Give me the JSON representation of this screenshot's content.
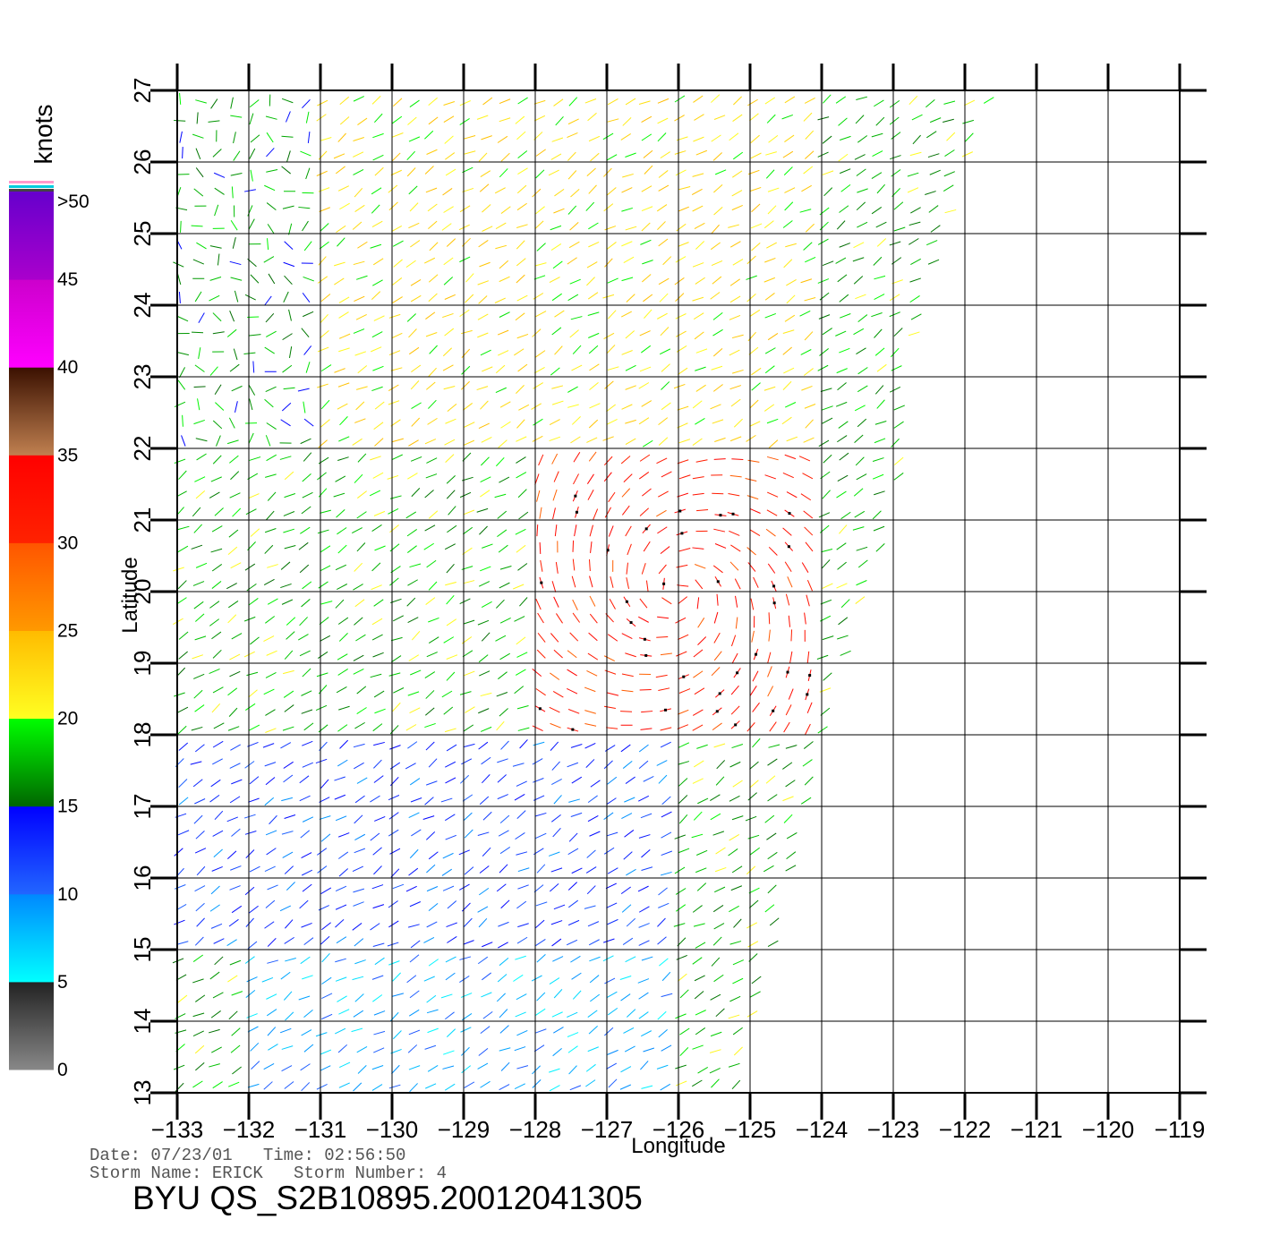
{
  "chart_data": {
    "type": "wind-vector map",
    "xlabel": "Longitude",
    "ylabel": "Latitude",
    "xlim": [
      -133,
      -119
    ],
    "ylim": [
      13,
      27
    ],
    "xticks": [
      "-133",
      "-132",
      "-131",
      "-130",
      "-129",
      "-128",
      "-127",
      "-126",
      "-125",
      "-124",
      "-123",
      "-122",
      "-121",
      "-120",
      "-119"
    ],
    "yticks": [
      "13",
      "14",
      "15",
      "16",
      "17",
      "18",
      "19",
      "20",
      "21",
      "22",
      "23",
      "24",
      "25",
      "26",
      "27"
    ],
    "grid": true,
    "swath_east_edge": [
      [
        13,
        -125.2
      ],
      [
        15,
        -124.7
      ],
      [
        17,
        -124.2
      ],
      [
        19,
        -123.7
      ],
      [
        21,
        -123.0
      ],
      [
        23,
        -122.8
      ],
      [
        25,
        -122.3
      ],
      [
        27,
        -121.6
      ]
    ],
    "colorbar": {
      "title": "knots",
      "labels": [
        ">50",
        "45",
        "40",
        "35",
        "30",
        "25",
        "20",
        "15",
        "10",
        "5",
        "0"
      ],
      "segments": [
        {
          "from": 0,
          "to": 5,
          "colors": [
            "#888888",
            "#222222"
          ]
        },
        {
          "from": 5,
          "to": 10,
          "colors": [
            "#00ffff",
            "#0088ff"
          ]
        },
        {
          "from": 10,
          "to": 15,
          "colors": [
            "#2266ff",
            "#0000ff"
          ]
        },
        {
          "from": 15,
          "to": 20,
          "colors": [
            "#006600",
            "#00ff00"
          ]
        },
        {
          "from": 20,
          "to": 25,
          "colors": [
            "#ffff22",
            "#ffbb00"
          ]
        },
        {
          "from": 25,
          "to": 30,
          "colors": [
            "#ff9900",
            "#ff5500"
          ]
        },
        {
          "from": 30,
          "to": 35,
          "colors": [
            "#ff2200",
            "#ff0000"
          ]
        },
        {
          "from": 35,
          "to": 40,
          "colors": [
            "#c08050",
            "#3a1000"
          ]
        },
        {
          "from": 40,
          "to": 45,
          "colors": [
            "#ff00ff",
            "#cc00cc"
          ]
        },
        {
          "from": 45,
          "to": 50,
          "colors": [
            "#aa00cc",
            "#6600cc"
          ]
        }
      ]
    },
    "wind_regions": [
      {
        "lat": [
          13,
          15
        ],
        "lon": [
          -132,
          -126
        ],
        "knots": 8,
        "direction": "northeasterly"
      },
      {
        "lat": [
          15,
          18
        ],
        "lon": [
          -133,
          -126
        ],
        "knots": 12,
        "direction": "northeasterly"
      },
      {
        "lat": [
          18,
          22
        ],
        "lon": [
          -128,
          -124
        ],
        "knots": 32,
        "direction": "cyclonic"
      },
      {
        "lat": [
          22,
          27
        ],
        "lon": [
          -131,
          -124
        ],
        "knots": 22,
        "direction": "northeasterly"
      },
      {
        "lat": [
          22,
          27
        ],
        "lon": [
          -133,
          -131
        ],
        "knots": 17,
        "direction": "variable"
      }
    ]
  },
  "footer": {
    "date_line": "Date: 07/23/01   Time: 02:56:50",
    "storm_line": "Storm Name: ERICK   Storm Number: 4",
    "title": "BYU QS_S2B10895.20012041305"
  },
  "colors": {
    "grid": "#000000",
    "footer_text": "#555555"
  }
}
